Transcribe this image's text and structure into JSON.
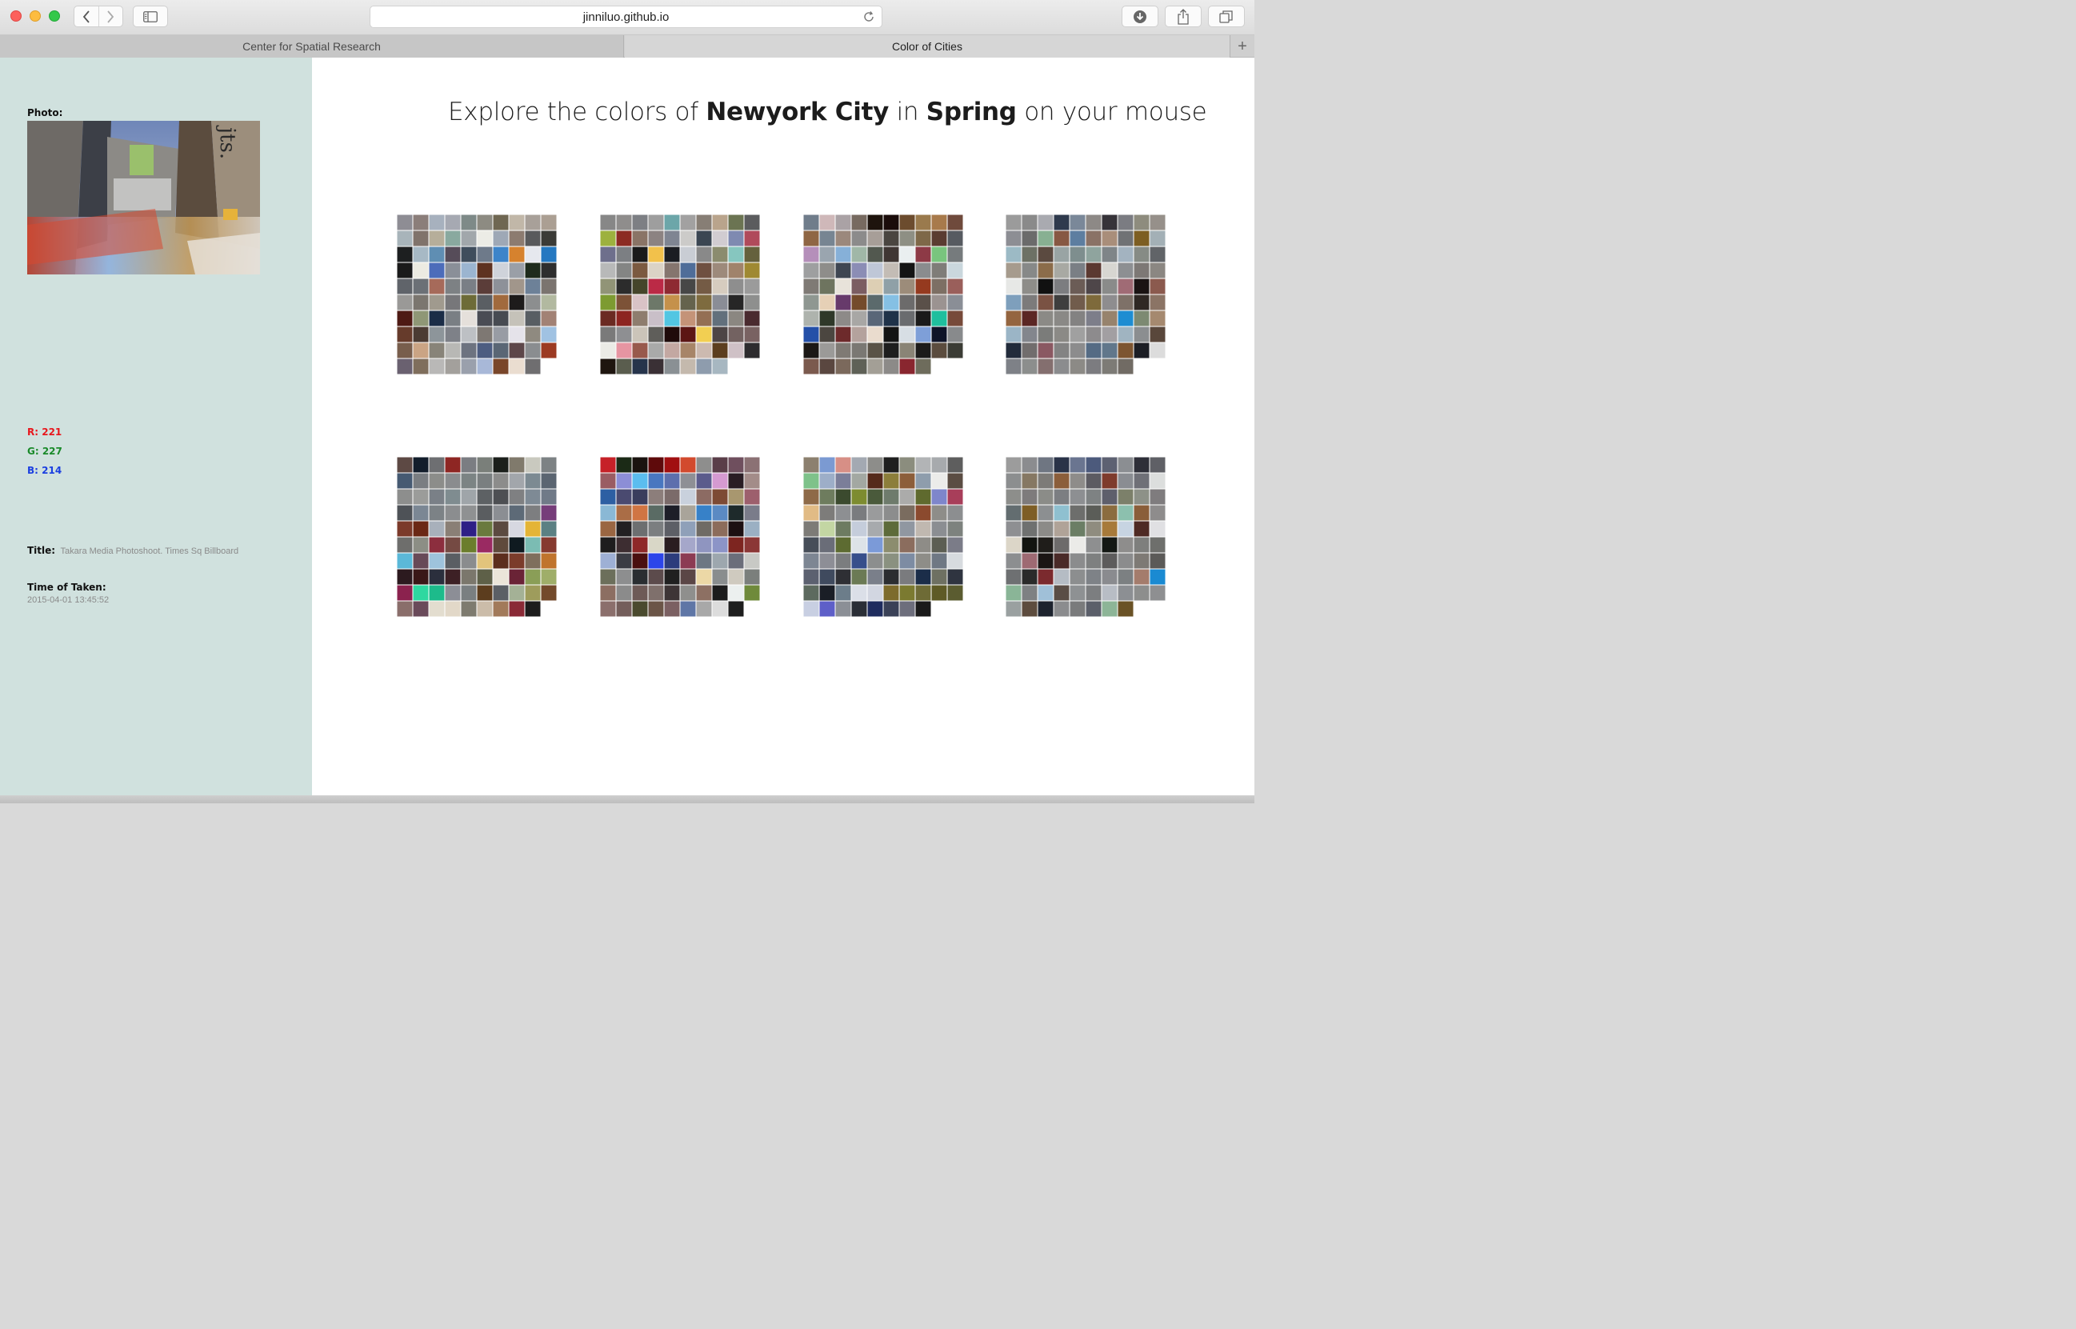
{
  "browser": {
    "url": "jinniluo.github.io",
    "tabs": [
      {
        "label": "Center for Spatial Research",
        "active": false
      },
      {
        "label": "Color of Cities",
        "active": true
      }
    ],
    "new_tab_label": "+"
  },
  "panel": {
    "photo_label": "Photo:",
    "photo_caption_mark": "jts.",
    "rgb": {
      "r": "R: 221",
      "g": "G: 227",
      "b": "B: 214"
    },
    "title_label": "Title:",
    "title_value": "Takara Media Photoshoot. Times Sq Billboard",
    "time_label": "Time of Taken:",
    "time_value": "2015-04-01 13:45:52",
    "background_color": "#d0e1de"
  },
  "headline": {
    "prefix": "Explore the colors of ",
    "city": "Newyork City",
    "middle": " in ",
    "season": "Spring",
    "suffix": " on your mouse"
  },
  "palettes": [
    {
      "id": "grid-1",
      "cells": [
        "#8e8d94",
        "#8b7e7a",
        "#a7b1be",
        "#a6a9b2",
        "#7e8a88",
        "#8d8b82",
        "#6f6752",
        "#c1b7a8",
        "#a8a099",
        "#ab9f93",
        "#a8b4ba",
        "#80736b",
        "#b6ae9a",
        "#89a99f",
        "#a1a7ab",
        "#ecece6",
        "#9ea8b6",
        "#8c7b70",
        "#595a5c",
        "#3b3b37",
        "#1d1f20",
        "#a7b9c5",
        "#5f8eb3",
        "#564c59",
        "#3f4d5c",
        "#6e7a8a",
        "#3d84c9",
        "#d6822e",
        "#e6e8ee",
        "#2478c1",
        "#1a1a1a",
        "#ecebe2",
        "#4c6cba",
        "#8a8f98",
        "#9bb5d0",
        "#5e3220",
        "#cfd3da",
        "#9a9fa7",
        "#1e2b1c",
        "#2e2e2e",
        "#60646a",
        "#6b7076",
        "#a66a5a",
        "#7d8184",
        "#7a7f86",
        "#5b3d39",
        "#8d9199",
        "#a1968b",
        "#6d8198",
        "#7b746f",
        "#9a9997",
        "#7b766f",
        "#a09a8e",
        "#77777a",
        "#6d6b37",
        "#5a5e63",
        "#a16a3d",
        "#1d1b1b",
        "#8c8e8f",
        "#b2b9a0",
        "#4e1a14",
        "#8f9776",
        "#1b2d47",
        "#7a7f84",
        "#e5e0db",
        "#4a4c54",
        "#474b52",
        "#c5c2b9",
        "#585e63",
        "#a28275",
        "#663b2b",
        "#4b3b33",
        "#8d959a",
        "#7e8188",
        "#bdc0c4",
        "#7e7873",
        "#989ca4",
        "#e5e3ea",
        "#8f8a80",
        "#a0c2e2",
        "#785e4c",
        "#caa484",
        "#888479",
        "#b8b8b5",
        "#6d7380",
        "#4d5d81",
        "#5a6675",
        "#5d474a",
        "#8a8d90",
        "#9c3a22",
        "#6a6170",
        "#7f6e5c",
        "#b9b8b7",
        "#a3a09c",
        "#9aa0ac",
        "#a8b8d8",
        "#79462a",
        "#eaddd0",
        "#6f6e70",
        "#ffffff"
      ]
    },
    {
      "id": "grid-2",
      "cells": [
        "#878787",
        "#8f8d8c",
        "#7d7f84",
        "#9e9e9e",
        "#6ca6a9",
        "#a2a1a1",
        "#877e75",
        "#b9a48c",
        "#6b7452",
        "#5b5c5e",
        "#9db13e",
        "#8c2b23",
        "#8a7466",
        "#8c8382",
        "#7f8592",
        "#cccbc9",
        "#3b4652",
        "#d1ccd1",
        "#7f8ab1",
        "#b04a5b",
        "#6e6f8c",
        "#7c7f83",
        "#1a1a1a",
        "#f2c14b",
        "#1b1d22",
        "#c9cdd4",
        "#898989",
        "#8b8c6e",
        "#86c6bf",
        "#65613d",
        "#b8b9b9",
        "#848584",
        "#7b5a40",
        "#dbd3c6",
        "#85756e",
        "#4f6d99",
        "#6f5041",
        "#9d8a7b",
        "#a0836b",
        "#9f8932",
        "#919477",
        "#2c2c2c",
        "#45452a",
        "#bb2a46",
        "#8e2a32",
        "#474747",
        "#745b45",
        "#d6ccbf",
        "#8e8e8e",
        "#9b9b9b",
        "#7d9b31",
        "#7c5237",
        "#d9c3c6",
        "#6d7869",
        "#c5914b",
        "#65634d",
        "#7e6b3f",
        "#8a8d96",
        "#262626",
        "#8e8f8e",
        "#6b2a22",
        "#8d2421",
        "#8e7d6e",
        "#c9bfc8",
        "#52c6e2",
        "#c49378",
        "#946f54",
        "#62707c",
        "#8b8781",
        "#4a2a2f",
        "#7a7a7a",
        "#8e8f92",
        "#cbc4b9",
        "#5f5e5a",
        "#1f0b0a",
        "#5c1614",
        "#f2cf52",
        "#4d4545",
        "#736261",
        "#796262",
        "#ebebe6",
        "#e695a2",
        "#98594c",
        "#a9aaa9",
        "#c3a8a2",
        "#a78568",
        "#ccbab0",
        "#5c3e1e",
        "#cfc1c6",
        "#2d2c2e",
        "#1e150f",
        "#5a5d4e",
        "#26344b",
        "#3a3035",
        "#8a9094",
        "#c4b9ad",
        "#8e9cad",
        "#a7b7c1",
        "#ffffff",
        "#ffffff"
      ]
    },
    {
      "id": "grid-3",
      "cells": [
        "#707d8b",
        "#cfb8b9",
        "#aaa2a5",
        "#776a60",
        "#1e140d",
        "#1a0c0a",
        "#6c4c2e",
        "#9a7a4d",
        "#a87a4b",
        "#6f4a3c",
        "#8f6644",
        "#778592",
        "#9b887c",
        "#8c8b8b",
        "#a79e98",
        "#4a4540",
        "#8e8f84",
        "#7e6848",
        "#5a3c31",
        "#575b61",
        "#b58fba",
        "#9aa5af",
        "#86b0d8",
        "#a0b7a7",
        "#52584f",
        "#3f3633",
        "#eaeff0",
        "#8d3a46",
        "#79c57e",
        "#767b7d",
        "#9e9fa0",
        "#8e8d8a",
        "#3e4652",
        "#8b8db5",
        "#bfc7d7",
        "#c3bcb5",
        "#141414",
        "#8a8c8e",
        "#7f7d78",
        "#cad7dd",
        "#7f7a75",
        "#6e745f",
        "#e8e3da",
        "#7b5d62",
        "#ddcfb4",
        "#8fa0a7",
        "#9c8c7a",
        "#953a1f",
        "#7d6f64",
        "#9a5f5b",
        "#8f9791",
        "#e6d0b6",
        "#673a6b",
        "#744b2b",
        "#5b6a6c",
        "#85c0e4",
        "#6c6b6b",
        "#5a5049",
        "#9b9391",
        "#8a8e96",
        "#aeb3ad",
        "#2f3829",
        "#8d8a88",
        "#a8a7a5",
        "#596678",
        "#1f3249",
        "#6a6c6f",
        "#1a1a1a",
        "#1fbf9e",
        "#774a3a",
        "#2450a8",
        "#4b4640",
        "#6d2a2b",
        "#b4a29d",
        "#eadcce",
        "#141414",
        "#d7dee4",
        "#7e9fd8",
        "#0e1328",
        "#888a8c",
        "#1b1816",
        "#9b9a98",
        "#7f7a74",
        "#7a7873",
        "#5a5347",
        "#1e1e1e",
        "#8a8476",
        "#1c1b1a",
        "#5b4c3e",
        "#3b3c35",
        "#7b5a4e",
        "#5a4740",
        "#7b695c",
        "#5f6157",
        "#a39f96",
        "#8c8a88",
        "#89262f",
        "#6e6c5c",
        "#ffffff",
        "#ffffff"
      ]
    },
    {
      "id": "grid-4",
      "cells": [
        "#9b9b9b",
        "#8a8a8a",
        "#a9aab0",
        "#2f3a4d",
        "#7a8899",
        "#8d8986",
        "#363339",
        "#7b7c82",
        "#8e8c7e",
        "#96908a",
        "#8d8e94",
        "#6b6b6b",
        "#88b092",
        "#875843",
        "#5d7ea0",
        "#8a7266",
        "#a98e7a",
        "#707275",
        "#7d5e22",
        "#a3b0b6",
        "#9cbac5",
        "#6d7165",
        "#5b4a40",
        "#99a4a4",
        "#7e8e8e",
        "#8fa49e",
        "#7f8588",
        "#a3b3c0",
        "#868b85",
        "#616468",
        "#a69b8d",
        "#878988",
        "#8b6c4a",
        "#a8a9a3",
        "#7a7f85",
        "#5b3931",
        "#d7d6d1",
        "#8d8f92",
        "#7d7875",
        "#8b8782",
        "#e7e8e6",
        "#8e8d89",
        "#111111",
        "#7c7d80",
        "#6b5c56",
        "#4e4649",
        "#8a8b8a",
        "#a06b75",
        "#1a1313",
        "#8b5a4e",
        "#7e9fbc",
        "#7c7b7b",
        "#7a5243",
        "#3e3e3e",
        "#715c4c",
        "#7e6a3b",
        "#8e8d8f",
        "#7e7168",
        "#2f2824",
        "#8b7465",
        "#946540",
        "#5b2624",
        "#8b8a86",
        "#8a8986",
        "#838282",
        "#7d7e8a",
        "#97836d",
        "#1e8dd2",
        "#7d8a72",
        "#a5896f",
        "#9bb5c6",
        "#83868d",
        "#7b7c7a",
        "#8b8a86",
        "#a0a0a0",
        "#8d8b8d",
        "#a29fa2",
        "#a0b4c1",
        "#8b8e90",
        "#59473b",
        "#222b3b",
        "#716d6d",
        "#8a5862",
        "#838383",
        "#8c8c8d",
        "#556b84",
        "#61778b",
        "#7d5531",
        "#1c1e25",
        "#dcdcdc",
        "#7e8187",
        "#8c8e8d",
        "#846f6f",
        "#8b8c8e",
        "#8c8a86",
        "#7c7c80",
        "#7d7b76",
        "#716b64",
        "#ffffff",
        "#ffffff"
      ]
    },
    {
      "id": "grid-5",
      "cells": [
        "#5d4944",
        "#121d2b",
        "#6e6f72",
        "#8e2623",
        "#7b7d82",
        "#7a7f7a",
        "#1b1f1b",
        "#807a6c",
        "#c9c9bf",
        "#7d8284",
        "#465a72",
        "#7a7e82",
        "#8c8d8a",
        "#8a8c8e",
        "#7c8484",
        "#7a7f80",
        "#8c8c8b",
        "#a2a6ab",
        "#7c8a92",
        "#5b6571",
        "#8d8e8d",
        "#9b9c9a",
        "#7a8087",
        "#7f8c90",
        "#9fa5a9",
        "#5d6164",
        "#4d4f53",
        "#7f8082",
        "#7e8a95",
        "#707a88",
        "#4e5257",
        "#7b8794",
        "#7c8286",
        "#8b8d8f",
        "#8f9192",
        "#5a5d60",
        "#8b8e93",
        "#5d6a77",
        "#7d7e80",
        "#763d7a",
        "#7b3a2a",
        "#6b2815",
        "#a8b0bb",
        "#8a7f76",
        "#2e1f86",
        "#6a7a3e",
        "#5b4a40",
        "#d7d8e1",
        "#e4b436",
        "#5b8083",
        "#6e6e6c",
        "#8c8e85",
        "#8c2e3e",
        "#754a43",
        "#6b7d2c",
        "#9a2a62",
        "#5f4a3c",
        "#0f1a20",
        "#7bbcb3",
        "#863a30",
        "#5bb8d8",
        "#684a58",
        "#9ec3dc",
        "#5a5e63",
        "#8a8c8e",
        "#e2c47c",
        "#5c2e1e",
        "#7b3c2b",
        "#7f6f5d",
        "#c0742d",
        "#2c1a1f",
        "#3a1717",
        "#2b2f3d",
        "#3d2025",
        "#7b776c",
        "#5e6048",
        "#ebe5d9",
        "#6a2336",
        "#8a9e57",
        "#9fae69",
        "#8b224e",
        "#2ed8a0",
        "#1dbb8b",
        "#8c8e96",
        "#7a7f81",
        "#5c3d1e",
        "#5b5f65",
        "#a4b196",
        "#9e9c5c",
        "#734a2b",
        "#8a6e6b",
        "#6a4a5a",
        "#e3ddcf",
        "#e2d8c8",
        "#7e7b6f",
        "#cbbca9",
        "#a27a5a",
        "#8a2a36",
        "#1c1c1c",
        "#ffffff"
      ]
    },
    {
      "id": "grid-6",
      "cells": [
        "#c62128",
        "#1b2a16",
        "#1a130f",
        "#5e0a0b",
        "#a10f10",
        "#d24a2e",
        "#8e8e8d",
        "#5a3e49",
        "#6f4f5e",
        "#8b7174",
        "#9a5c63",
        "#8c8ed6",
        "#5bbdef",
        "#4977c0",
        "#5d6fad",
        "#8e8f95",
        "#5b5b8c",
        "#d59ad1",
        "#2a1d24",
        "#a38c89",
        "#2d5fa3",
        "#4a4a70",
        "#3a3d5d",
        "#8c7e7b",
        "#7b6b6a",
        "#c9d1dd",
        "#8c6b63",
        "#7d4a34",
        "#a8976f",
        "#9d5f6d",
        "#8ab8d5",
        "#aa6d46",
        "#d07543",
        "#5a6b64",
        "#1d1e28",
        "#a9a49a",
        "#3781c8",
        "#5b8ac3",
        "#1e2a2b",
        "#7a7c8a",
        "#9a6642",
        "#222022",
        "#6d6f70",
        "#7b7e80",
        "#5d5f66",
        "#8fa0b9",
        "#6f6b65",
        "#8c6c5b",
        "#1c1012",
        "#9bb0c3",
        "#1e1d1e",
        "#3d2d31",
        "#8e2828",
        "#d9d7c7",
        "#2a1d20",
        "#a5a7ca",
        "#8f95c0",
        "#8c94c7",
        "#7d2520",
        "#8b3736",
        "#9eb0d5",
        "#3b3c44",
        "#4a0f0f",
        "#2c45ea",
        "#2c3c7c",
        "#8c3b53",
        "#6d7783",
        "#9da7ae",
        "#6b6e7a",
        "#c8c9c5",
        "#6c6f5b",
        "#8d8e8f",
        "#2a2d31",
        "#5c4b4c",
        "#202020",
        "#5b4646",
        "#ecd8a6",
        "#898d8e",
        "#cfcabf",
        "#7b7f7c",
        "#8c6e62",
        "#8b8b8b",
        "#6e5a57",
        "#7f706c",
        "#3e3536",
        "#8f8f8d",
        "#8d7063",
        "#1c1c1c",
        "#ecf0ef",
        "#6f8a3b",
        "#8b6f6c",
        "#745e5b",
        "#4a4a2e",
        "#6b5547",
        "#7b6062",
        "#5f76a6",
        "#a8a8a8",
        "#dcdcdc",
        "#1e1e1e",
        "#ffffff"
      ]
    },
    {
      "id": "grid-7",
      "cells": [
        "#8c806f",
        "#7b9ad2",
        "#d78f86",
        "#a3a9b2",
        "#8d8d8a",
        "#1f1f1f",
        "#8b8d7e",
        "#b2b4b6",
        "#a7aaad",
        "#5e5e5e",
        "#7ec28a",
        "#9daec8",
        "#7b7e99",
        "#a3a8a2",
        "#552a1b",
        "#8c7e3a",
        "#8c5e3a",
        "#8e9dac",
        "#ececea",
        "#5b4d43",
        "#8e6a48",
        "#6e7c5e",
        "#3b4a2e",
        "#7d8c30",
        "#4a5a3b",
        "#6e7b6c",
        "#ababaa",
        "#5f6a2e",
        "#7e86cb",
        "#a83e5a",
        "#e1bb85",
        "#7d7c7a",
        "#8d8f92",
        "#7a7c7f",
        "#9a9b9c",
        "#8c8d8d",
        "#7a6c5f",
        "#8b4a2e",
        "#8e8d89",
        "#8c8e90",
        "#7d7b77",
        "#c3d6a3",
        "#6d7b61",
        "#c5cddb",
        "#a7aaad",
        "#5d6b39",
        "#9097a1",
        "#c0b8b0",
        "#8b8e92",
        "#7d827e",
        "#474e59",
        "#6a6d78",
        "#5d6b31",
        "#dde3e8",
        "#7b9ad8",
        "#8c8d6f",
        "#8b6d5e",
        "#8e8c87",
        "#5c5e53",
        "#7b7c88",
        "#7d8693",
        "#8d8e96",
        "#7b7d7f",
        "#364e8b",
        "#8c8e8e",
        "#8a9180",
        "#7d8ca3",
        "#8e8d88",
        "#6f7884",
        "#d7dbdf",
        "#5c6170",
        "#3f4a5e",
        "#2e2f34",
        "#6b7a55",
        "#7a7f8a",
        "#2b2d30",
        "#7a7b7e",
        "#1b2d49",
        "#6e7062",
        "#2f3440",
        "#5d6a5f",
        "#1a1e26",
        "#6c7d8a",
        "#dbdfe8",
        "#d2d6e1",
        "#7d6b2c",
        "#7b7a30",
        "#6e6b36",
        "#5e5a26",
        "#5b5c30",
        "#c8cfe2",
        "#5e5fc8",
        "#8b8f96",
        "#2a2e36",
        "#1f2c5e",
        "#3a4157",
        "#6d6e7c",
        "#1a1a1a",
        "#ffffff",
        "#ffffff"
      ]
    },
    {
      "id": "grid-8",
      "cells": [
        "#9c9c9c",
        "#8b8c8f",
        "#6f7682",
        "#2a3348",
        "#6a7590",
        "#4c5a7c",
        "#5d6172",
        "#8b8e92",
        "#2e2f38",
        "#5f6066",
        "#8c8e8f",
        "#867863",
        "#7d7b78",
        "#8b5e3b",
        "#8e8c8a",
        "#5c5b62",
        "#7e3b2c",
        "#8a8d92",
        "#6f7077",
        "#dcdedd",
        "#8d8e8b",
        "#7e7b7c",
        "#8b8c88",
        "#7c7e82",
        "#8d8f92",
        "#7e8283",
        "#5e5f6c",
        "#7c806a",
        "#8d9188",
        "#7f7c7e",
        "#636d70",
        "#7e5e26",
        "#8c8f91",
        "#8fc0d0",
        "#6d6e6c",
        "#5b5d58",
        "#8b6c3f",
        "#8cc0ae",
        "#8a5e39",
        "#8e8c8c",
        "#8e8f92",
        "#6f7170",
        "#8c8b88",
        "#b0a398",
        "#6b7e65",
        "#8f8c7f",
        "#a77a3a",
        "#c7d4e2",
        "#4e2a24",
        "#e0e0e3",
        "#dcd6c8",
        "#121410",
        "#1f1d1a",
        "#6d6b6b",
        "#ebebe8",
        "#8e8f90",
        "#141814",
        "#8e8d8c",
        "#7e7f7d",
        "#6e6f6c",
        "#8c8e90",
        "#9e6a73",
        "#1b1514",
        "#4a2a28",
        "#8b8c8d",
        "#7e8080",
        "#5d5c5c",
        "#8b8c8d",
        "#7e7a75",
        "#5b5a58",
        "#6e7072",
        "#2a2a2a",
        "#7b2a2e",
        "#b5bcc4",
        "#8c8e8f",
        "#7e8287",
        "#8a8b8f",
        "#7c8082",
        "#a47c6c",
        "#1a8ad2",
        "#8ab597",
        "#7e8183",
        "#a0c0d8",
        "#5a4d45",
        "#8e9193",
        "#7c7e80",
        "#b8bdc5",
        "#8c8f93",
        "#8d8e8d",
        "#8e8f91",
        "#9aa0a0",
        "#5d4c3e",
        "#1d232e",
        "#8b8c8e",
        "#7a7b7c",
        "#5b5f6a",
        "#8db597",
        "#6a5226",
        "#ffffff",
        "#ffffff"
      ]
    }
  ]
}
